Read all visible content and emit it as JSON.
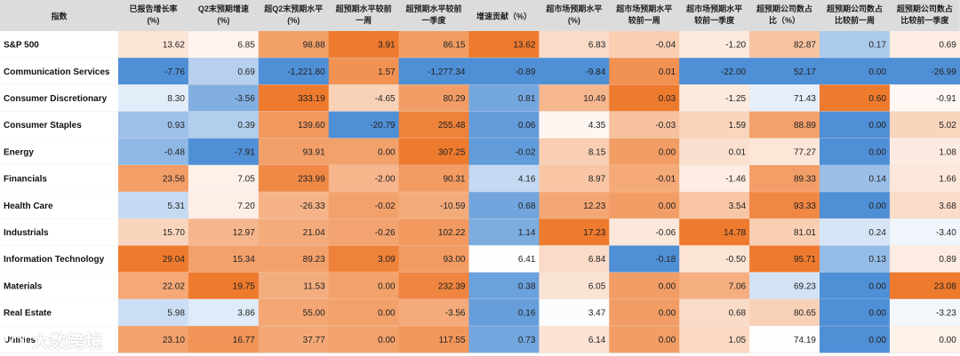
{
  "chart_data": {
    "type": "heatmap",
    "corner_header": "指数",
    "columns": [
      {
        "lines": [
          "已报告增长率",
          "(%)"
        ]
      },
      {
        "lines": [
          "Q2末预期增速",
          "(%)"
        ]
      },
      {
        "lines": [
          "超Q2末预期水平",
          "(%)"
        ]
      },
      {
        "lines": [
          "超预期水平较前",
          "一周"
        ]
      },
      {
        "lines": [
          "超预期水平较前",
          "一季度"
        ]
      },
      {
        "lines": [
          "增速贡献（%）"
        ]
      },
      {
        "lines": [
          "超市场预期水平",
          "(%)"
        ]
      },
      {
        "lines": [
          "超市场预期水平",
          "较前一周"
        ]
      },
      {
        "lines": [
          "超市场预期水平",
          "较前一季度"
        ]
      },
      {
        "lines": [
          "超预期公司数占",
          "比（%）"
        ]
      },
      {
        "lines": [
          "超预期公司数占",
          "比较前一周"
        ]
      },
      {
        "lines": [
          "超预期公司数占",
          "比较前一季度"
        ]
      }
    ],
    "rows": [
      {
        "label": "S&P 500",
        "values": [
          "13.62",
          "6.85",
          "98.88",
          "3.91",
          "86.15",
          "13.62",
          "6.83",
          "-0.04",
          "-1.20",
          "82.87",
          "0.17",
          "0.69"
        ]
      },
      {
        "label": "Communication Services",
        "values": [
          "-7.76",
          "0.69",
          "-1,221.80",
          "1.57",
          "-1,277.34",
          "-0.89",
          "-9.84",
          "0.01",
          "-22.00",
          "52.17",
          "0.00",
          "-26.99"
        ]
      },
      {
        "label": "Consumer Discretionary",
        "values": [
          "8.30",
          "-3.56",
          "333.19",
          "-4.65",
          "80.29",
          "0.81",
          "10.49",
          "0.03",
          "-1.25",
          "71.43",
          "0.60",
          "-0.91"
        ]
      },
      {
        "label": "Consumer Staples",
        "values": [
          "0.93",
          "0.39",
          "139.60",
          "-20.79",
          "255.48",
          "0.06",
          "4.35",
          "-0.03",
          "1.59",
          "88.89",
          "0.00",
          "5.02"
        ]
      },
      {
        "label": "Energy",
        "values": [
          "-0.48",
          "-7.91",
          "93.91",
          "0.00",
          "307.25",
          "-0.02",
          "8.15",
          "0.00",
          "0.01",
          "77.27",
          "0.00",
          "1.08"
        ]
      },
      {
        "label": "Financials",
        "values": [
          "23.56",
          "7.05",
          "233.99",
          "-2.00",
          "90.31",
          "4.16",
          "8.97",
          "-0.01",
          "-1.46",
          "89.33",
          "0.14",
          "1.66"
        ]
      },
      {
        "label": "Health Care",
        "values": [
          "5.31",
          "7.20",
          "-26.33",
          "-0.02",
          "-10.59",
          "0.68",
          "12.23",
          "0.00",
          "3.54",
          "93.33",
          "0.00",
          "3.68"
        ]
      },
      {
        "label": "Industrials",
        "values": [
          "15.70",
          "12.97",
          "21.04",
          "-0.26",
          "102.22",
          "1.14",
          "17.23",
          "-0.06",
          "14.78",
          "81.01",
          "0.24",
          "-3.40"
        ]
      },
      {
        "label": "Information Technology",
        "values": [
          "29.04",
          "15.34",
          "89.23",
          "3.09",
          "93.00",
          "6.41",
          "6.84",
          "-0.18",
          "-0.50",
          "95.71",
          "0.13",
          "0.89"
        ]
      },
      {
        "label": "Materials",
        "values": [
          "22.02",
          "19.75",
          "11.53",
          "0.00",
          "232.39",
          "0.38",
          "6.05",
          "0.00",
          "7.06",
          "69.23",
          "0.00",
          "23.08"
        ]
      },
      {
        "label": "Real Estate",
        "values": [
          "5.98",
          "3.86",
          "55.00",
          "0.00",
          "-3.56",
          "0.16",
          "3.47",
          "0.00",
          "0.68",
          "80.65",
          "0.00",
          "-3.23"
        ]
      },
      {
        "label": "Utilities",
        "values": [
          "23.10",
          "16.77",
          "37.77",
          "0.00",
          "117.55",
          "0.73",
          "6.14",
          "0.00",
          "1.05",
          "74.19",
          "0.00",
          "0.00"
        ]
      }
    ],
    "color_scale": {
      "low": "#4f8fd6",
      "mid": "#ffffff",
      "high": "#ee7a2e"
    },
    "header_bg": "#dcdcdc"
  },
  "watermark": {
    "text": "大数跨境"
  }
}
